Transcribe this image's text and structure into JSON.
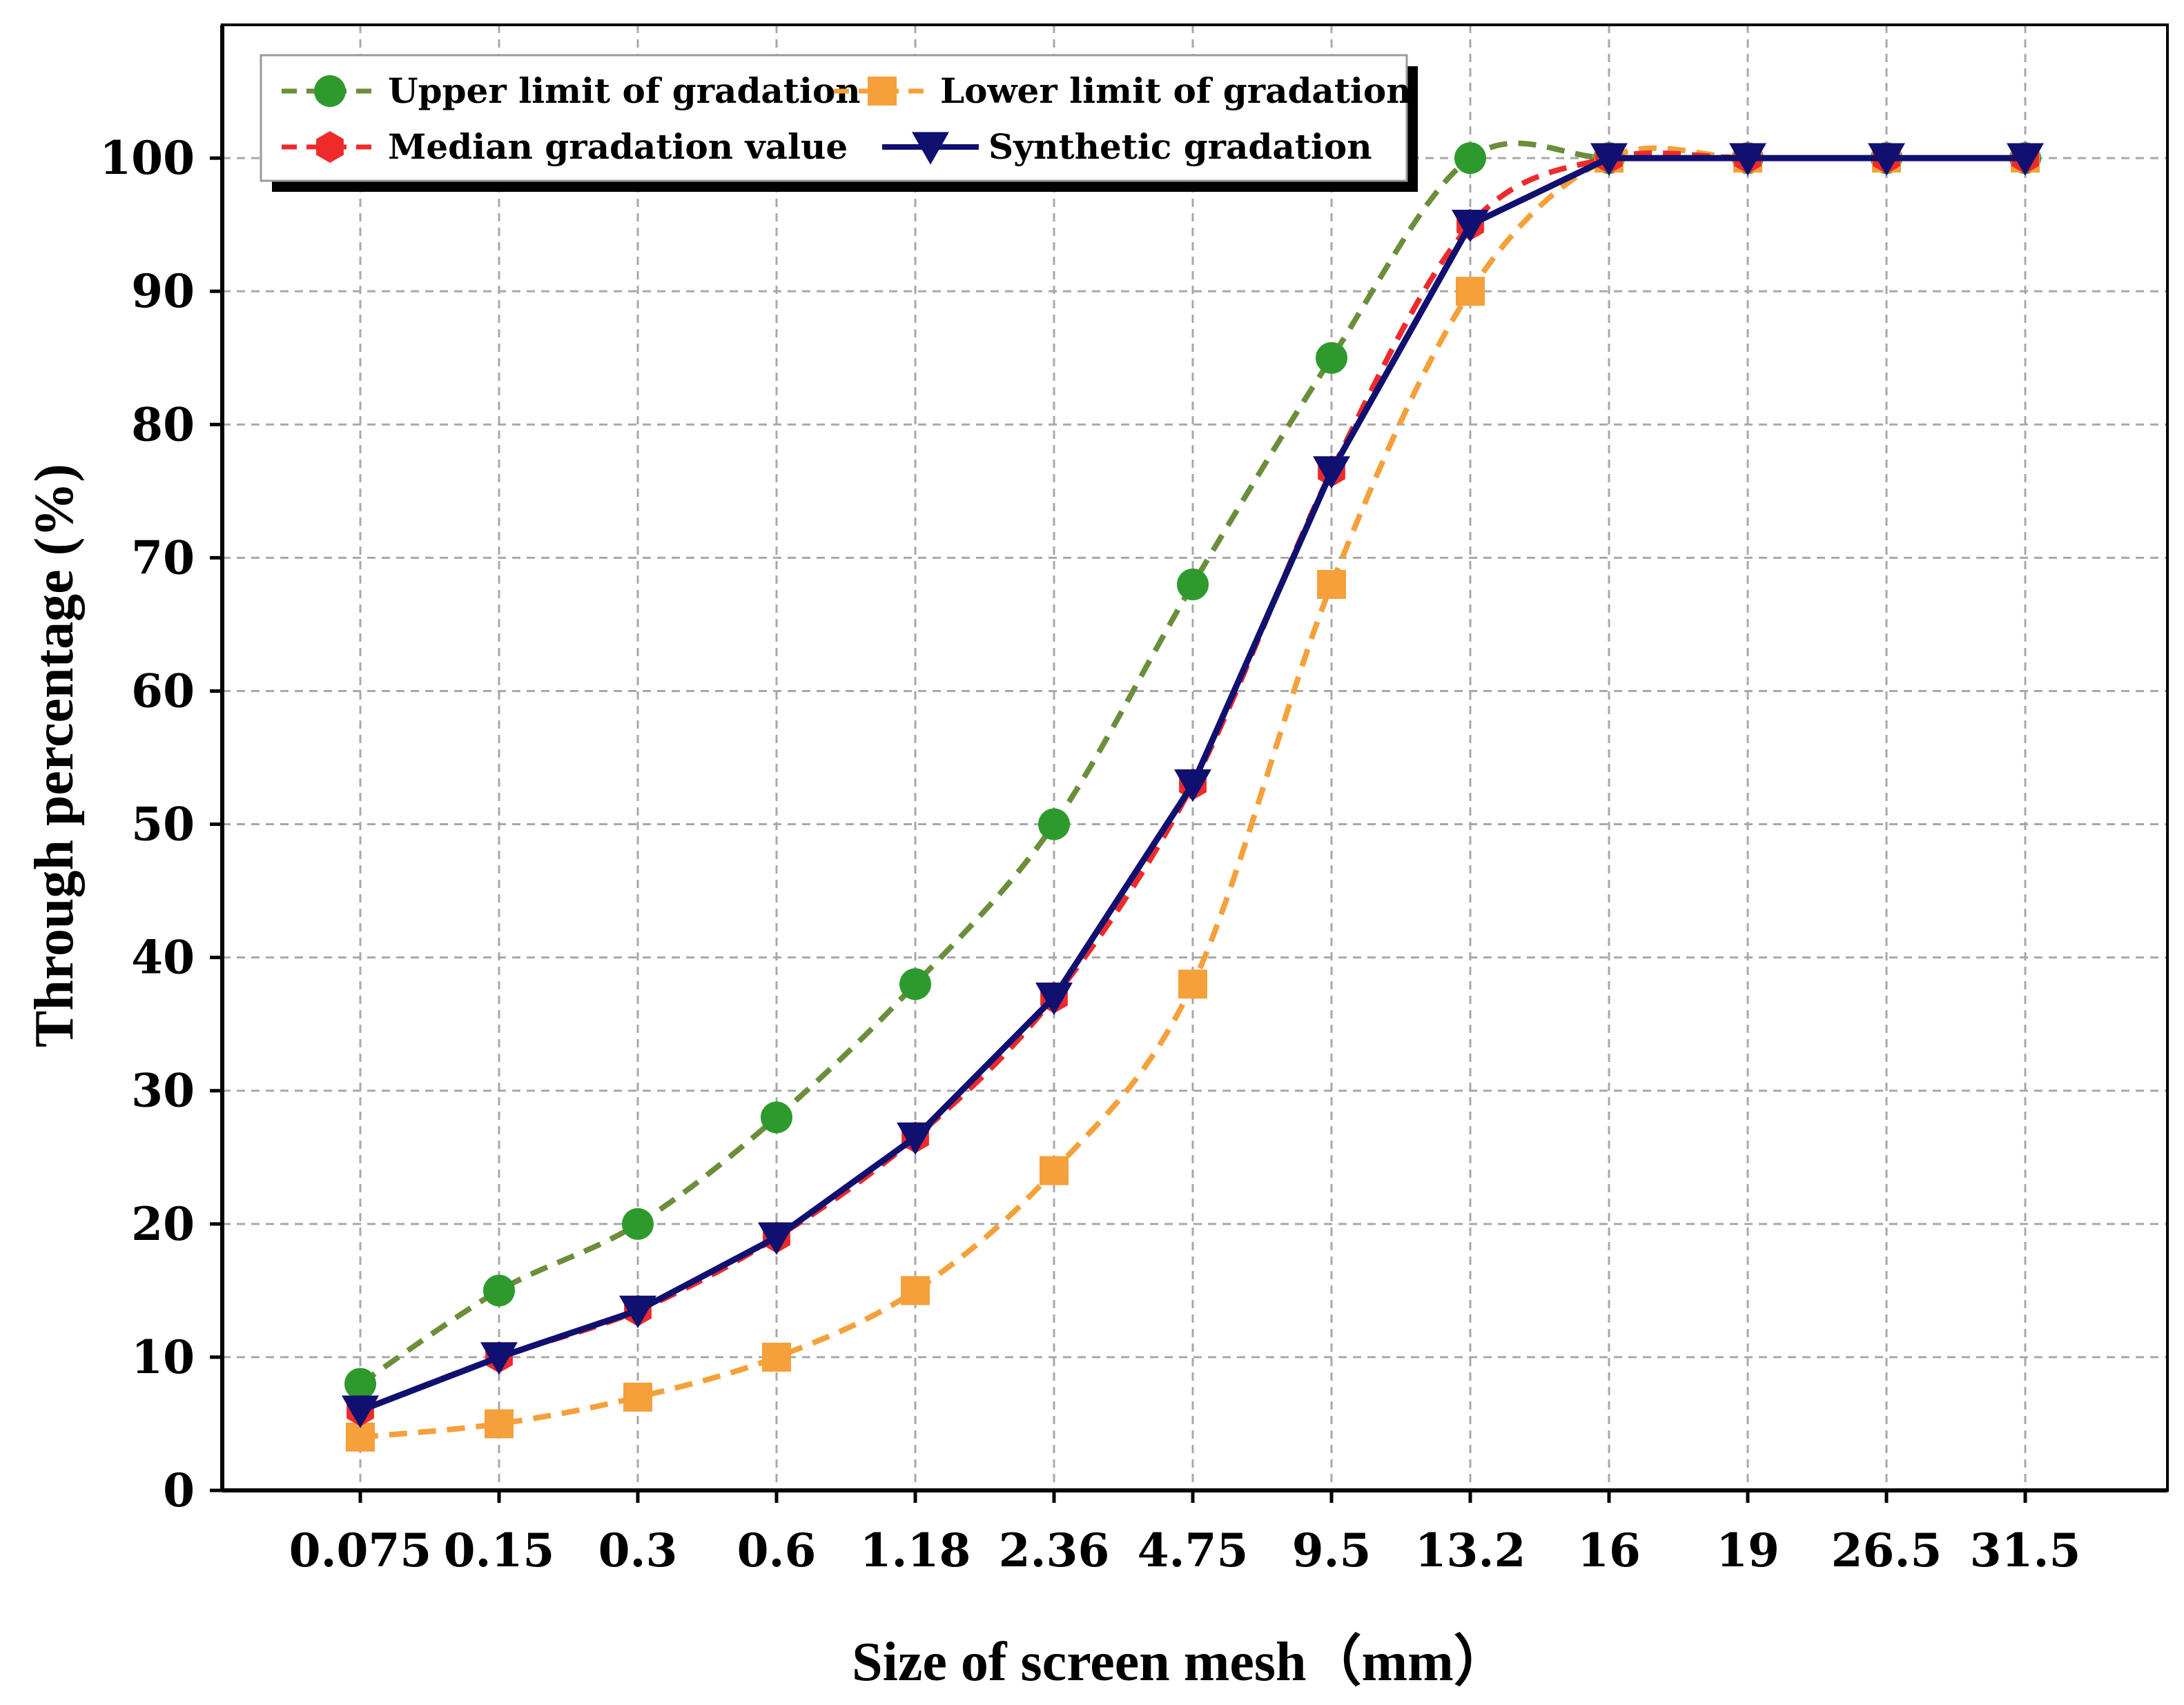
{
  "chart_data": {
    "type": "line",
    "title": "",
    "xlabel": "Size of screen mesh（mm）",
    "ylabel": "Through percentage (%)",
    "categories": [
      "0.075",
      "0.15",
      "0.3",
      "0.6",
      "1.18",
      "2.36",
      "4.75",
      "9.5",
      "13.2",
      "16",
      "19",
      "26.5",
      "31.5"
    ],
    "ylim": [
      0,
      110
    ],
    "yticks": [
      0,
      10,
      20,
      30,
      40,
      50,
      60,
      70,
      80,
      90,
      100
    ],
    "grid": true,
    "legend_position": "top-left",
    "series": [
      {
        "name": "Upper limit of gradation",
        "values": [
          8,
          15,
          20,
          28,
          38,
          50,
          68,
          85,
          100,
          100,
          100,
          100,
          100
        ],
        "color": "#6b8e3a",
        "marker": "circle",
        "marker_color": "#2e9a2e",
        "line_style": "dashed"
      },
      {
        "name": "Lower limit of gradation",
        "values": [
          4,
          5,
          7,
          10,
          15,
          24,
          38,
          68,
          90,
          100,
          100,
          100,
          100
        ],
        "color": "#f5a03a",
        "marker": "square",
        "marker_color": "#f5a03a",
        "line_style": "dashed"
      },
      {
        "name": "Median gradation value",
        "values": [
          6,
          10,
          13.5,
          19,
          26.5,
          37,
          53,
          76.5,
          95,
          100,
          100,
          100,
          100
        ],
        "color": "#ee2a2a",
        "marker": "hexagon",
        "marker_color": "#ee2a2a",
        "line_style": "dashed"
      },
      {
        "name": "Synthetic gradation",
        "values": [
          6,
          10,
          13.5,
          19,
          26.5,
          37,
          53,
          76.5,
          95,
          100,
          100,
          100,
          100
        ],
        "color": "#101070",
        "marker": "triangle-down",
        "marker_color": "#101070",
        "line_style": "solid"
      }
    ]
  }
}
